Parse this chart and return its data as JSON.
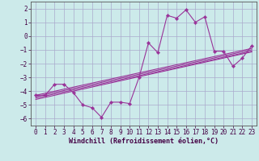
{
  "xlabel": "Windchill (Refroidissement éolien,°C)",
  "bg_color": "#cceaea",
  "grid_color": "#aaaacc",
  "line_color": "#993399",
  "xlim": [
    -0.5,
    23.5
  ],
  "ylim": [
    -6.5,
    2.5
  ],
  "yticks": [
    -6,
    -5,
    -4,
    -3,
    -2,
    -1,
    0,
    1,
    2
  ],
  "xticks": [
    0,
    1,
    2,
    3,
    4,
    5,
    6,
    7,
    8,
    9,
    10,
    11,
    12,
    13,
    14,
    15,
    16,
    17,
    18,
    19,
    20,
    21,
    22,
    23
  ],
  "main_x": [
    0,
    1,
    2,
    3,
    4,
    5,
    6,
    7,
    8,
    9,
    10,
    11,
    12,
    13,
    14,
    15,
    16,
    17,
    18,
    19,
    20,
    21,
    22,
    23
  ],
  "main_y": [
    -4.3,
    -4.3,
    -3.5,
    -3.5,
    -4.1,
    -5.0,
    -5.2,
    -5.9,
    -4.8,
    -4.8,
    -4.9,
    -3.0,
    -0.5,
    -1.2,
    1.5,
    1.3,
    1.9,
    1.0,
    1.4,
    -1.1,
    -1.1,
    -2.2,
    -1.6,
    -0.7
  ],
  "reg_lines": [
    {
      "x": [
        0,
        23
      ],
      "y": [
        -4.3,
        -0.9
      ]
    },
    {
      "x": [
        0,
        23
      ],
      "y": [
        -4.4,
        -1.0
      ]
    },
    {
      "x": [
        0,
        23
      ],
      "y": [
        -4.5,
        -1.1
      ]
    },
    {
      "x": [
        0,
        23
      ],
      "y": [
        -4.6,
        -1.15
      ]
    }
  ],
  "xlabel_fontsize": 6,
  "tick_fontsize": 5.5
}
